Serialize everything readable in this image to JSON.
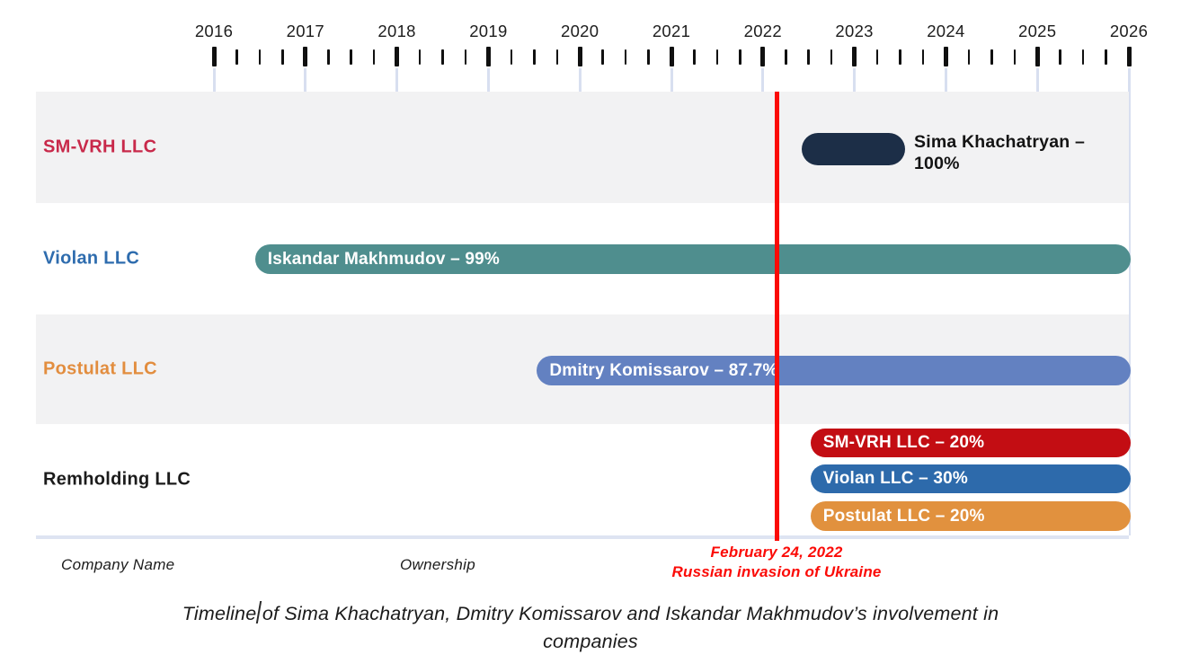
{
  "chart_data": {
    "type": "timeline",
    "x_axis": {
      "years": [
        "2016",
        "2017",
        "2018",
        "2019",
        "2020",
        "2021",
        "2022",
        "2023",
        "2024",
        "2025",
        "2026"
      ],
      "range": [
        2016,
        2026
      ],
      "minor_ticks_per_year": 4,
      "gridlines": true
    },
    "event_line": {
      "x_year": 2022.15,
      "color": "#fb0b07",
      "label_line1": "February 24, 2022",
      "label_line2": "Russian invasion of Ukraine"
    },
    "rows": [
      {
        "company": "SM-VRH LLC",
        "label_color": "#c8294a",
        "band": "gray",
        "bars": [
          {
            "label": "Sima Khachatryan – 100%",
            "label_position": "outside-right",
            "color": "#1c2e47",
            "text_color": "#141414",
            "start": 2022.42,
            "end": 2023.55
          }
        ]
      },
      {
        "company": "Violan LLC",
        "label_color": "#2e6cae",
        "band": "white",
        "bars": [
          {
            "label": "Iskandar Makhmudov – 99%",
            "label_position": "inside",
            "color": "#4f8e8e",
            "text_color": "#ffffff",
            "start": 2016.45,
            "end": 2026.02
          }
        ]
      },
      {
        "company": "Postulat LLC",
        "label_color": "#e28d3e",
        "band": "gray",
        "bars": [
          {
            "label": "Dmitry Komissarov – 87.7%",
            "label_position": "inside",
            "color": "#6381c1",
            "text_color": "#ffffff",
            "start": 2019.53,
            "end": 2026.02
          }
        ]
      },
      {
        "company": "Remholding LLC",
        "label_color": "#1b1b1b",
        "band": "white",
        "bars": [
          {
            "label": "SM-VRH LLC – 20%",
            "label_position": "inside",
            "color": "#c30d13",
            "text_color": "#ffffff",
            "start": 2022.52,
            "end": 2026.02
          },
          {
            "label": "Violan LLC – 30%",
            "label_position": "inside",
            "color": "#2d6aab",
            "text_color": "#ffffff",
            "start": 2022.52,
            "end": 2026.02
          },
          {
            "label": "Postulat LLC – 20%",
            "label_position": "inside",
            "color": "#e1913e",
            "text_color": "#ffffff",
            "start": 2022.52,
            "end": 2026.02
          }
        ]
      }
    ],
    "footer_labels": {
      "company_name": "Company Name",
      "ownership": "Ownership"
    },
    "caption": {
      "before_cursor": "Timeline",
      "after_cursor": "of Sima Khachatryan, Dmitry Komissarov and Iskandar Makhmudov’s involvement in",
      "line2": "companies"
    }
  }
}
